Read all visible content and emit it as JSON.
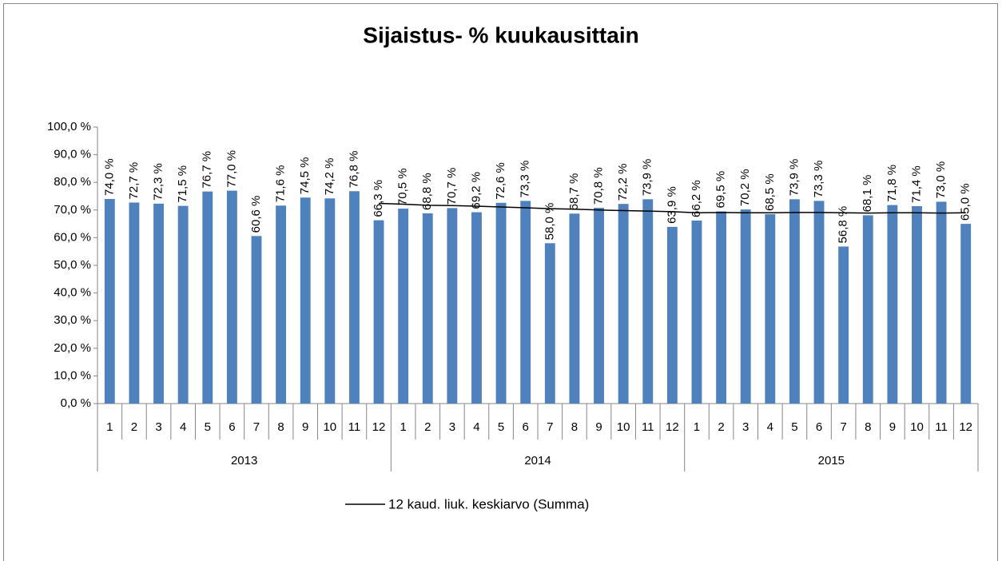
{
  "chart_data": {
    "type": "bar",
    "title": "Sijaistus- % kuukausittain",
    "categories": [
      "1",
      "2",
      "3",
      "4",
      "5",
      "6",
      "7",
      "8",
      "9",
      "10",
      "11",
      "12",
      "1",
      "2",
      "3",
      "4",
      "5",
      "6",
      "7",
      "8",
      "9",
      "10",
      "11",
      "12",
      "1",
      "2",
      "3",
      "4",
      "5",
      "6",
      "7",
      "8",
      "9",
      "10",
      "11",
      "12"
    ],
    "category_groups": [
      "2013",
      "2014",
      "2015"
    ],
    "series": [
      {
        "type": "bar",
        "color": "#4f81bd",
        "values": [
          74.0,
          72.7,
          72.3,
          71.5,
          76.7,
          77.0,
          60.6,
          71.6,
          74.5,
          74.2,
          76.8,
          66.3,
          70.5,
          68.8,
          70.7,
          69.2,
          72.6,
          73.3,
          58.0,
          68.7,
          70.8,
          72.2,
          73.9,
          63.9,
          66.2,
          69.5,
          70.2,
          68.5,
          73.9,
          73.3,
          56.8,
          68.1,
          71.8,
          71.4,
          73.0,
          65.0
        ],
        "value_labels": [
          "74,0 %",
          "72,7 %",
          "72,3 %",
          "71,5 %",
          "76,7 %",
          "77,0 %",
          "60,6 %",
          "71,6 %",
          "74,5 %",
          "74,2 %",
          "76,8 %",
          "66,3 %",
          "70,5 %",
          "68,8 %",
          "70,7 %",
          "69,2 %",
          "72,6 %",
          "73,3 %",
          "58,0 %",
          "68,7 %",
          "70,8 %",
          "72,2 %",
          "73,9 %",
          "63,9 %",
          "66,2 %",
          "69,5 %",
          "70,2 %",
          "68,5 %",
          "73,9 %",
          "73,3 %",
          "56,8 %",
          "68,1 %",
          "71,8 %",
          "71,4 %",
          "73,0 %",
          "65,0 %"
        ]
      },
      {
        "type": "line",
        "name": "12 kaud. liuk. keskiarvo (Summa)",
        "color": "#000000",
        "values": [
          null,
          null,
          null,
          null,
          null,
          null,
          null,
          null,
          null,
          null,
          null,
          72.4,
          72.1,
          71.7,
          71.6,
          71.4,
          71.1,
          70.8,
          70.5,
          70.3,
          70.0,
          69.8,
          69.6,
          69.4,
          69.0,
          69.1,
          69.0,
          69.0,
          69.1,
          69.1,
          69.0,
          68.9,
          69.0,
          69.0,
          68.9,
          69.0
        ]
      }
    ],
    "ylim": [
      0,
      100
    ],
    "yticks": [
      {
        "value": 0,
        "label": "0,0 %"
      },
      {
        "value": 10,
        "label": "10,0 %"
      },
      {
        "value": 20,
        "label": "20,0 %"
      },
      {
        "value": 30,
        "label": "30,0 %"
      },
      {
        "value": 40,
        "label": "40,0 %"
      },
      {
        "value": 50,
        "label": "50,0 %"
      },
      {
        "value": 60,
        "label": "60,0 %"
      },
      {
        "value": 70,
        "label": "70,0 %"
      },
      {
        "value": 80,
        "label": "80,0 %"
      },
      {
        "value": 90,
        "label": "90,0 %"
      },
      {
        "value": 100,
        "label": "100,0 %"
      }
    ],
    "grid": false,
    "legend": "bottom"
  }
}
